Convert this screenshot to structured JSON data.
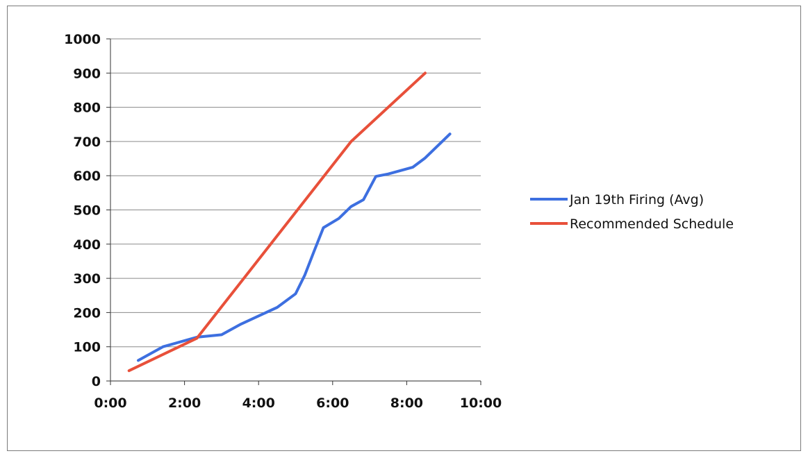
{
  "chart_data": {
    "type": "line",
    "title": "",
    "xlabel": "",
    "ylabel": "",
    "xlim": [
      0,
      10
    ],
    "ylim": [
      0,
      1000
    ],
    "x_ticks": [
      0,
      2,
      4,
      6,
      8,
      10
    ],
    "x_tick_labels": [
      "0:00",
      "2:00",
      "4:00",
      "6:00",
      "8:00",
      "10:00"
    ],
    "y_ticks": [
      0,
      100,
      200,
      300,
      400,
      500,
      600,
      700,
      800,
      900,
      1000
    ],
    "y_tick_labels": [
      "0",
      "100",
      "200",
      "300",
      "400",
      "500",
      "600",
      "700",
      "800",
      "900",
      "1000"
    ],
    "grid": "horizontal",
    "legend_position": "right",
    "series": [
      {
        "name": "Jan 19th Firing (Avg)",
        "color": "#3d6fe0",
        "x": [
          "0:45",
          "1:25",
          "2:20",
          "3:00",
          "3:30",
          "4:00",
          "4:30",
          "5:00",
          "5:15",
          "5:30",
          "5:45",
          "6:10",
          "6:30",
          "6:50",
          "7:10",
          "7:30",
          "8:10",
          "8:30",
          "9:10"
        ],
        "y": [
          60,
          100,
          128,
          135,
          165,
          190,
          215,
          255,
          310,
          380,
          448,
          475,
          510,
          530,
          598,
          605,
          625,
          652,
          722
        ]
      },
      {
        "name": "Recommended Schedule",
        "color": "#e8503a",
        "x": [
          "0:30",
          "2:20",
          "6:30",
          "8:30"
        ],
        "y": [
          30,
          125,
          700,
          900
        ]
      }
    ]
  }
}
